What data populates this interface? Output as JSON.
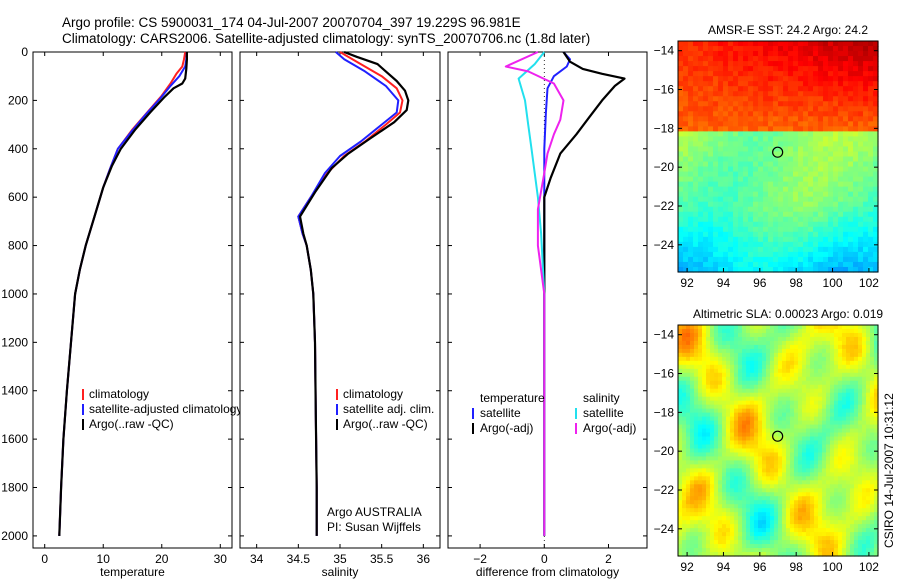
{
  "figure": {
    "title_line1": "Argo profile: CS 5900031_174 04-Jul-2007 20070704_397 19.229S 96.981E",
    "title_line2": "Climatology: CARS2006. Satellite-adjusted climatology: synTS_20070706.nc (1.8d later)",
    "side_label": "CSIRO 14-Jul-2007 10:31:12",
    "argo_credit_1": "Argo AUSTRALIA",
    "argo_credit_2": "PI: Susan Wijffels"
  },
  "colors": {
    "climatology": "#ff2020",
    "satellite_adjusted": "#2020ff",
    "argo": "#000000",
    "salinity_satellite": "#22e0ee",
    "salinity_argo": "#ee22ee"
  },
  "chart_data": [
    {
      "type": "line",
      "xlabel": "temperature",
      "ylabel": "",
      "xlim": [
        -2,
        32
      ],
      "ylim": [
        2050,
        0
      ],
      "xticks": [
        0,
        10,
        20,
        30
      ],
      "yticks": [
        0,
        200,
        400,
        600,
        800,
        1000,
        1200,
        1400,
        1600,
        1800,
        2000
      ],
      "legend": [
        "climatology",
        "satellite-adjusted climatology",
        "Argo(..raw -QC)"
      ],
      "legend_position": "lower-right",
      "series": [
        {
          "name": "climatology",
          "color": "#ff2020",
          "points": [
            [
              24.0,
              0
            ],
            [
              23.8,
              30
            ],
            [
              23.5,
              60
            ],
            [
              22.5,
              90
            ],
            [
              21.5,
              130
            ],
            [
              20.0,
              180
            ],
            [
              17.5,
              250
            ],
            [
              15.0,
              320
            ],
            [
              12.5,
              400
            ],
            [
              11.2,
              480
            ],
            [
              10.0,
              560
            ],
            [
              8.5,
              680
            ],
            [
              7.0,
              800
            ],
            [
              6.0,
              900
            ],
            [
              5.2,
              1000
            ],
            [
              4.5,
              1200
            ],
            [
              3.8,
              1400
            ],
            [
              3.2,
              1600
            ],
            [
              2.8,
              1800
            ],
            [
              2.5,
              2000
            ]
          ]
        },
        {
          "name": "satellite-adjusted climatology",
          "color": "#2020ff",
          "points": [
            [
              24.3,
              0
            ],
            [
              24.2,
              30
            ],
            [
              24.0,
              60
            ],
            [
              23.0,
              100
            ],
            [
              21.5,
              140
            ],
            [
              19.8,
              190
            ],
            [
              17.2,
              260
            ],
            [
              14.8,
              330
            ],
            [
              12.5,
              400
            ],
            [
              11.2,
              480
            ],
            [
              10.0,
              560
            ],
            [
              8.5,
              680
            ],
            [
              7.0,
              800
            ],
            [
              6.0,
              900
            ],
            [
              5.2,
              1000
            ],
            [
              4.5,
              1200
            ],
            [
              3.8,
              1400
            ],
            [
              3.2,
              1600
            ],
            [
              2.8,
              1800
            ],
            [
              2.5,
              2000
            ]
          ]
        },
        {
          "name": "Argo(..raw -QC)",
          "color": "#000000",
          "points": [
            [
              24.3,
              0
            ],
            [
              24.3,
              30
            ],
            [
              24.2,
              70
            ],
            [
              24.0,
              110
            ],
            [
              23.5,
              130
            ],
            [
              22.0,
              150
            ],
            [
              20.5,
              185
            ],
            [
              18.0,
              250
            ],
            [
              15.5,
              320
            ],
            [
              13.0,
              400
            ],
            [
              11.5,
              470
            ],
            [
              10.0,
              560
            ],
            [
              8.5,
              680
            ],
            [
              7.0,
              800
            ],
            [
              6.0,
              900
            ],
            [
              5.2,
              1000
            ],
            [
              4.5,
              1200
            ],
            [
              3.8,
              1400
            ],
            [
              3.2,
              1600
            ],
            [
              2.8,
              1800
            ],
            [
              2.5,
              2000
            ]
          ]
        }
      ]
    },
    {
      "type": "line",
      "xlabel": "salinity",
      "ylabel": "",
      "xlim": [
        33.8,
        36.2
      ],
      "ylim": [
        2050,
        0
      ],
      "xticks": [
        34,
        34.5,
        35,
        35.5,
        36
      ],
      "yticks": [
        0,
        200,
        400,
        600,
        800,
        1000,
        1200,
        1400,
        1600,
        1800,
        2000
      ],
      "legend": [
        "climatology",
        "satellite adj. clim.",
        "Argo(..raw -QC)"
      ],
      "legend_position": "lower-right",
      "series": [
        {
          "name": "climatology",
          "color": "#ff2020",
          "points": [
            [
              35.0,
              0
            ],
            [
              35.25,
              50
            ],
            [
              35.5,
              100
            ],
            [
              35.68,
              150
            ],
            [
              35.75,
              200
            ],
            [
              35.72,
              250
            ],
            [
              35.55,
              300
            ],
            [
              35.3,
              370
            ],
            [
              35.05,
              430
            ],
            [
              34.85,
              500
            ],
            [
              34.65,
              600
            ],
            [
              34.5,
              680
            ],
            [
              34.55,
              750
            ],
            [
              34.6,
              800
            ],
            [
              34.65,
              900
            ],
            [
              34.68,
              1000
            ],
            [
              34.7,
              1200
            ],
            [
              34.71,
              1500
            ],
            [
              34.72,
              1800
            ],
            [
              34.72,
              2000
            ]
          ]
        },
        {
          "name": "satellite adj. clim.",
          "color": "#2020ff",
          "points": [
            [
              34.95,
              0
            ],
            [
              35.05,
              30
            ],
            [
              35.3,
              80
            ],
            [
              35.55,
              140
            ],
            [
              35.7,
              200
            ],
            [
              35.68,
              250
            ],
            [
              35.5,
              300
            ],
            [
              35.25,
              370
            ],
            [
              35.0,
              430
            ],
            [
              34.82,
              500
            ],
            [
              34.65,
              600
            ],
            [
              34.5,
              680
            ],
            [
              34.55,
              750
            ],
            [
              34.6,
              800
            ],
            [
              34.65,
              900
            ],
            [
              34.68,
              1000
            ],
            [
              34.7,
              1200
            ],
            [
              34.71,
              1500
            ],
            [
              34.72,
              1800
            ],
            [
              34.72,
              2000
            ]
          ]
        },
        {
          "name": "Argo(..raw -QC)",
          "color": "#000000",
          "points": [
            [
              35.05,
              0
            ],
            [
              35.2,
              20
            ],
            [
              35.45,
              50
            ],
            [
              35.55,
              80
            ],
            [
              35.68,
              120
            ],
            [
              35.78,
              160
            ],
            [
              35.82,
              200
            ],
            [
              35.8,
              240
            ],
            [
              35.65,
              290
            ],
            [
              35.35,
              360
            ],
            [
              35.1,
              420
            ],
            [
              34.9,
              480
            ],
            [
              34.7,
              580
            ],
            [
              34.52,
              680
            ],
            [
              34.56,
              750
            ],
            [
              34.6,
              800
            ],
            [
              34.65,
              900
            ],
            [
              34.68,
              1000
            ],
            [
              34.7,
              1200
            ],
            [
              34.71,
              1500
            ],
            [
              34.72,
              1800
            ],
            [
              34.72,
              2000
            ]
          ]
        }
      ]
    },
    {
      "type": "line",
      "xlabel": "difference from climatology",
      "ylabel": "",
      "xlim": [
        -3,
        3.2
      ],
      "ylim": [
        2050,
        0
      ],
      "xticks": [
        -2,
        0,
        2
      ],
      "yticks": [
        0,
        200,
        400,
        600,
        800,
        1000,
        1200,
        1400,
        1600,
        1800,
        2000
      ],
      "legend_temperature": [
        "temperature",
        "satellite",
        "Argo(-adj)"
      ],
      "legend_salinity": [
        "salinity",
        "satellite",
        "Argo(-adj)"
      ],
      "legend_position": "lower-center",
      "series": [
        {
          "name": "temperature satellite",
          "color": "#2020ff",
          "points": [
            [
              0.6,
              0
            ],
            [
              0.8,
              30
            ],
            [
              0.7,
              60
            ],
            [
              0.3,
              100
            ],
            [
              0.1,
              150
            ],
            [
              0.05,
              250
            ],
            [
              0.0,
              400
            ],
            [
              0.0,
              800
            ],
            [
              0.0,
              2000
            ]
          ]
        },
        {
          "name": "temperature Argo(-adj)",
          "color": "#000000",
          "points": [
            [
              0.6,
              0
            ],
            [
              0.8,
              40
            ],
            [
              1.2,
              70
            ],
            [
              1.8,
              90
            ],
            [
              2.5,
              110
            ],
            [
              2.2,
              140
            ],
            [
              1.8,
              200
            ],
            [
              1.4,
              270
            ],
            [
              1.0,
              340
            ],
            [
              0.5,
              420
            ],
            [
              0.2,
              520
            ],
            [
              0.0,
              600
            ],
            [
              0.0,
              800
            ],
            [
              0.0,
              2000
            ]
          ]
        },
        {
          "name": "salinity satellite",
          "color": "#22e0ee",
          "points": [
            [
              0.0,
              0
            ],
            [
              -0.3,
              50
            ],
            [
              -0.8,
              110
            ],
            [
              -0.6,
              200
            ],
            [
              -0.5,
              300
            ],
            [
              -0.4,
              400
            ],
            [
              -0.3,
              500
            ],
            [
              -0.2,
              600
            ],
            [
              -0.1,
              750
            ],
            [
              0.0,
              1000
            ],
            [
              0.0,
              2000
            ]
          ]
        },
        {
          "name": "salinity Argo(-adj)",
          "color": "#ee22ee",
          "points": [
            [
              -0.2,
              0
            ],
            [
              -1.2,
              60
            ],
            [
              -0.5,
              80
            ],
            [
              0.3,
              130
            ],
            [
              0.6,
              200
            ],
            [
              0.5,
              280
            ],
            [
              0.3,
              340
            ],
            [
              0.1,
              420
            ],
            [
              0.0,
              500
            ],
            [
              -0.2,
              650
            ],
            [
              -0.2,
              800
            ],
            [
              0.0,
              1000
            ],
            [
              0.0,
              2000
            ]
          ]
        }
      ]
    },
    {
      "type": "heatmap",
      "title": "AMSR-E SST: 24.2 Argo: 24.2",
      "xlim": [
        91.5,
        102.5
      ],
      "ylim": [
        -25.4,
        -13.5
      ],
      "xticks": [
        92,
        94,
        96,
        98,
        100,
        102
      ],
      "yticks": [
        -14,
        -16,
        -18,
        -20,
        -22,
        -24
      ],
      "marker": {
        "lon": 96.981,
        "lat": -19.229
      }
    },
    {
      "type": "heatmap",
      "title": "Altimetric SLA: 0.00023 Argo: 0.019",
      "xlim": [
        91.5,
        102.5
      ],
      "ylim": [
        -25.4,
        -13.5
      ],
      "xticks": [
        92,
        94,
        96,
        98,
        100,
        102
      ],
      "yticks": [
        -14,
        -16,
        -18,
        -20,
        -22,
        -24
      ],
      "marker": {
        "lon": 96.981,
        "lat": -19.229
      }
    }
  ]
}
